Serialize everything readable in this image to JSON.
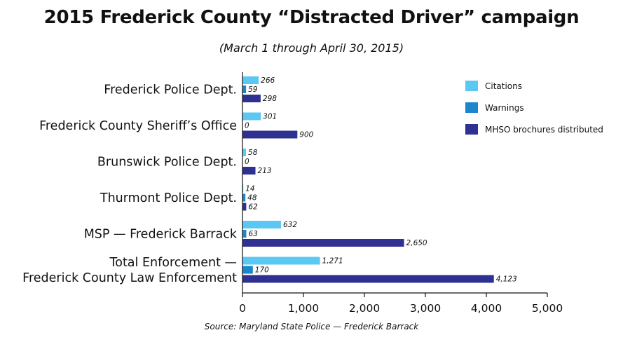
{
  "chart_data": {
    "type": "bar",
    "orientation": "horizontal",
    "title": "2015 Frederick County “Distracted Driver” campaign",
    "subtitle": "(March 1 through April 30, 2015)",
    "source": "Source: Maryland State Police — Frederick Barrack",
    "categories": [
      [
        "Frederick Police Dept."
      ],
      [
        "Frederick County Sheriff’s Office"
      ],
      [
        "Brunswick Police Dept."
      ],
      [
        "Thurmont Police Dept."
      ],
      [
        "MSP — Frederick Barrack"
      ],
      [
        "Total Enforcement —",
        "Frederick County Law Enforcement"
      ]
    ],
    "series": [
      {
        "name": "Citations",
        "color": "#5bc8f3",
        "values": [
          266,
          301,
          58,
          14,
          632,
          1271
        ],
        "labels": [
          "266",
          "301",
          "58",
          "14",
          "632",
          "1,271"
        ]
      },
      {
        "name": "Warnings",
        "color": "#1a86cc",
        "values": [
          59,
          0,
          0,
          48,
          63,
          170
        ],
        "labels": [
          "59",
          "0",
          "0",
          "48",
          "63",
          "170"
        ]
      },
      {
        "name": "MHSO brochures distributed",
        "color": "#2e3192",
        "values": [
          298,
          900,
          213,
          62,
          2650,
          4123
        ],
        "labels": [
          "298",
          "900",
          "213",
          "62",
          "2,650",
          "4,123"
        ]
      }
    ],
    "xlim": [
      0,
      5000
    ],
    "xticks": [
      0,
      1000,
      2000,
      3000,
      4000,
      5000
    ],
    "xtick_labels": [
      "0",
      "1,000",
      "2,000",
      "3,000",
      "4,000",
      "5,000"
    ],
    "xlabel": "",
    "ylabel": "",
    "legend": "top-right",
    "grid": false
  }
}
